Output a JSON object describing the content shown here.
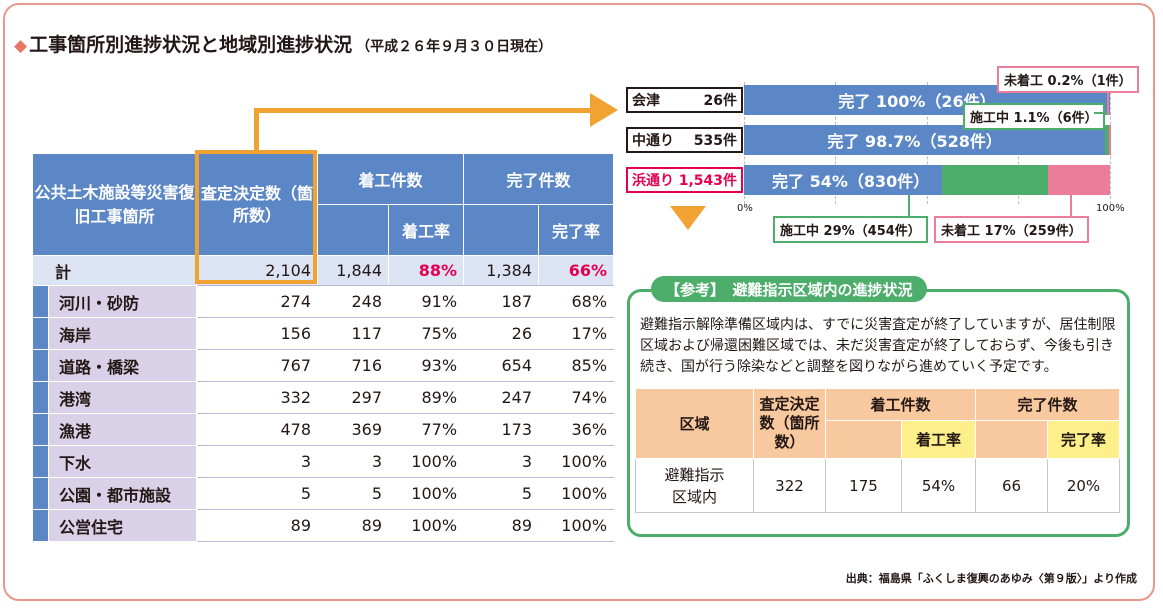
{
  "title": "工事箇所別進捗状況と地域別進捗状況",
  "title_date": "（平成２６年９月３０日現在）",
  "table": {
    "col_category": "公共土木施設等災害復旧工事箇所",
    "col_count": "査定決定数（箇所数）",
    "col_started": "着工件数",
    "col_started_rate": "着工率",
    "col_completed": "完了件数",
    "col_completed_rate": "完了率",
    "total": {
      "label": "計",
      "count": "2,104",
      "started": "1,844",
      "started_rate": "88%",
      "completed": "1,384",
      "completed_rate": "66%"
    },
    "rows": [
      {
        "label": "河川・砂防",
        "count": "274",
        "started": "248",
        "started_rate": "91%",
        "completed": "187",
        "completed_rate": "68%"
      },
      {
        "label": "海岸",
        "count": "156",
        "started": "117",
        "started_rate": "75%",
        "completed": "26",
        "completed_rate": "17%"
      },
      {
        "label": "道路・橋梁",
        "count": "767",
        "started": "716",
        "started_rate": "93%",
        "completed": "654",
        "completed_rate": "85%"
      },
      {
        "label": "港湾",
        "count": "332",
        "started": "297",
        "started_rate": "89%",
        "completed": "247",
        "completed_rate": "74%"
      },
      {
        "label": "漁港",
        "count": "478",
        "started": "369",
        "started_rate": "77%",
        "completed": "173",
        "completed_rate": "36%"
      },
      {
        "label": "下水",
        "count": "3",
        "started": "3",
        "started_rate": "100%",
        "completed": "3",
        "completed_rate": "100%"
      },
      {
        "label": "公園・都市施設",
        "count": "5",
        "started": "5",
        "started_rate": "100%",
        "completed": "5",
        "completed_rate": "100%"
      },
      {
        "label": "公営住宅",
        "count": "89",
        "started": "89",
        "started_rate": "100%",
        "completed": "89",
        "completed_rate": "100%"
      }
    ]
  },
  "chart_data": {
    "type": "bar",
    "orientation": "horizontal-stacked",
    "categories": [
      {
        "region": "会津",
        "count": "26件"
      },
      {
        "region": "中通り",
        "count": "535件"
      },
      {
        "region": "浜通り",
        "count": "1,543件"
      }
    ],
    "series": [
      {
        "name": "完了",
        "values": [
          100,
          98.7,
          54
        ],
        "labels": [
          "完了 100%（26件）",
          "完了 98.7%（528件）",
          "完了 54%（830件）"
        ],
        "color": "#5b87c7"
      },
      {
        "name": "施工中",
        "values": [
          0,
          1.1,
          29
        ],
        "labels": [
          "",
          "施工中 1.1%（6件）",
          "施工中 29%（454件）"
        ],
        "color": "#4dad6b"
      },
      {
        "name": "未着工",
        "values": [
          0,
          0.2,
          17
        ],
        "labels": [
          "",
          "未着工 0.2%（1件）",
          "未着工 17%（259件）"
        ],
        "color": "#ec7d9a"
      }
    ],
    "xlim": [
      0,
      100
    ],
    "xticks": [
      "0%",
      "100%"
    ],
    "grid": true
  },
  "reference": {
    "tag": "【参考】　避難指示区域内の進捗状況",
    "text": "避難指示解除準備区域内は、すでに災害査定が終了していますが、居住制限区域および帰還困難区域では、未だ災害査定が終了しておらず、今後も引き続き、国が行う除染などと調整を図りながら進めていく予定です。",
    "col_area": "区域",
    "col_count": "査定決定数（箇所数）",
    "col_started": "着工件数",
    "col_started_rate": "着工率",
    "col_completed": "完了件数",
    "col_completed_rate": "完了率",
    "row": {
      "area": "避難指示区域内",
      "count": "322",
      "started": "175",
      "started_rate": "54%",
      "completed": "66",
      "completed_rate": "20%"
    }
  },
  "source": "出典：福島県「ふくしま復興のあゆみ〈第９版〉」より作成"
}
